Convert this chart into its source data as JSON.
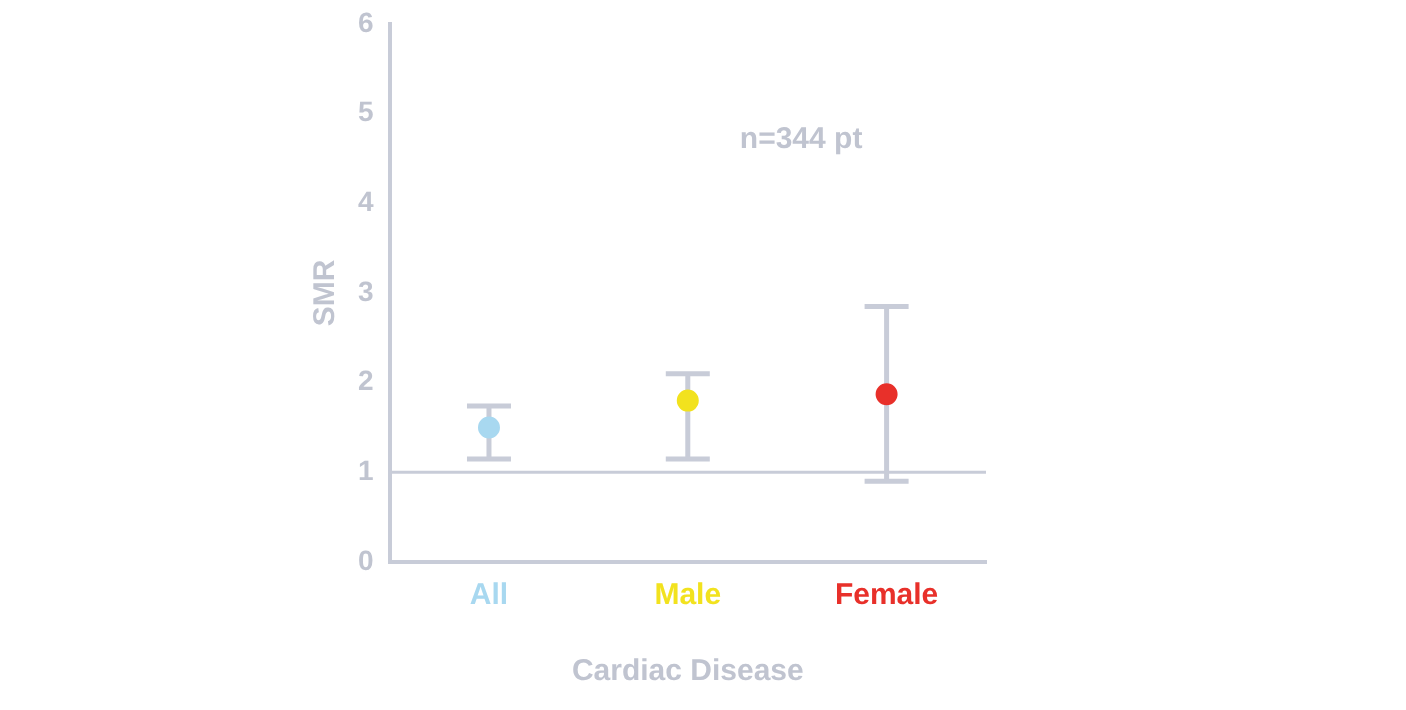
{
  "chart_data": {
    "type": "scatter",
    "xlabel": "Cardiac Disease",
    "ylabel": "SMR",
    "categories": [
      "All",
      "Male",
      "Female"
    ],
    "values": [
      1.5,
      1.8,
      1.87
    ],
    "colors": [
      "#a8d8f0",
      "#f2e21e",
      "#e8302a"
    ],
    "errors": [
      [
        1.15,
        1.74
      ],
      [
        1.15,
        2.1
      ],
      [
        0.9,
        2.85
      ]
    ],
    "ylim": [
      0,
      6
    ],
    "yticks": [
      0,
      1,
      2,
      3,
      4,
      5,
      6
    ],
    "ref_lines": [
      {
        "axis": "y",
        "value": 1,
        "color": "#c8ccd8"
      }
    ],
    "annotations": [
      "n=344 pt"
    ],
    "marker": "circle",
    "grid": false,
    "legend": false
  }
}
